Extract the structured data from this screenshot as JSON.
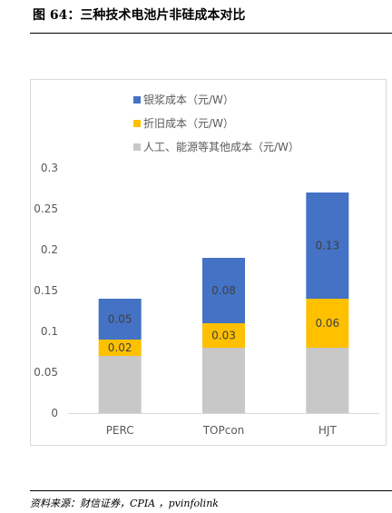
{
  "header": {
    "title": "图 64：三种技术电池片非硅成本对比"
  },
  "footer": {
    "source": "资料来源：财信证券，CPIA ，pvinfolink"
  },
  "chart_data": {
    "type": "bar",
    "stacked": true,
    "categories": [
      "PERC",
      "TOPcon",
      "HJT"
    ],
    "series": [
      {
        "name": "人工、能源等其他成本（元/W）",
        "values": [
          0.07,
          0.08,
          0.08
        ],
        "color": "#c8c8c8",
        "labels": [
          "",
          "",
          ""
        ]
      },
      {
        "name": "折旧成本（元/W）",
        "values": [
          0.02,
          0.03,
          0.06
        ],
        "color": "#ffc000",
        "labels": [
          "0.02",
          "0.03",
          "0.06"
        ]
      },
      {
        "name": "银浆成本（元/W）",
        "values": [
          0.05,
          0.08,
          0.13
        ],
        "color": "#4472c4",
        "labels": [
          "0.05",
          "0.08",
          "0.13"
        ]
      }
    ],
    "ylim": [
      0,
      0.3
    ],
    "yticks": [
      "0",
      "0.05",
      "0.1",
      "0.15",
      "0.2",
      "0.25",
      "0.3"
    ],
    "legend_order": [
      2,
      1,
      0
    ],
    "legend_position": "top-left",
    "grid": false
  }
}
